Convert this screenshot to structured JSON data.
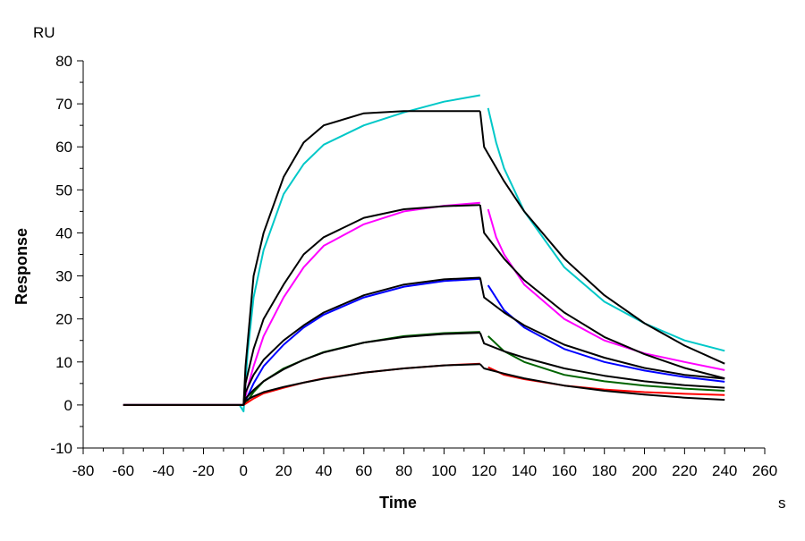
{
  "chart_data": {
    "type": "line",
    "title": "",
    "xlabel": "Time",
    "ylabel": "Response",
    "x_unit": "s",
    "y_unit": "RU",
    "xlim": [
      -80,
      260
    ],
    "ylim": [
      -10,
      80
    ],
    "x_ticks": [
      -80,
      -60,
      -40,
      -20,
      0,
      20,
      40,
      60,
      80,
      100,
      120,
      140,
      160,
      180,
      200,
      220,
      240,
      260
    ],
    "y_ticks": [
      -10,
      0,
      10,
      20,
      30,
      40,
      50,
      60,
      70,
      80
    ],
    "grid": false,
    "legend": "none",
    "series": [
      {
        "color": "#00c8c8",
        "kind": "measured",
        "points": [
          [
            -60,
            0
          ],
          [
            -2,
            0
          ],
          [
            0,
            -1.5
          ],
          [
            2,
            12
          ],
          [
            5,
            25
          ],
          [
            10,
            36
          ],
          [
            20,
            49
          ],
          [
            30,
            56
          ],
          [
            40,
            60.5
          ],
          [
            60,
            65
          ],
          [
            80,
            68
          ],
          [
            100,
            70.5
          ],
          [
            118,
            72
          ]
        ],
        "dissociation": [
          [
            122,
            69
          ],
          [
            126,
            61
          ],
          [
            130,
            55
          ],
          [
            140,
            45
          ],
          [
            160,
            32
          ],
          [
            180,
            24
          ],
          [
            200,
            19
          ],
          [
            220,
            15
          ],
          [
            240,
            12.6
          ]
        ]
      },
      {
        "color": "#000000",
        "kind": "fit",
        "points": [
          [
            0,
            0
          ],
          [
            1,
            9
          ],
          [
            5,
            30
          ],
          [
            10,
            40
          ],
          [
            20,
            53
          ],
          [
            30,
            61
          ],
          [
            40,
            65
          ],
          [
            60,
            67.8
          ],
          [
            80,
            68.3
          ],
          [
            118,
            68.3
          ]
        ],
        "dissociation": [
          [
            118,
            68.3
          ],
          [
            120,
            60
          ],
          [
            130,
            52
          ],
          [
            140,
            45
          ],
          [
            160,
            34
          ],
          [
            180,
            25.5
          ],
          [
            200,
            19
          ],
          [
            220,
            13.8
          ],
          [
            240,
            9.6
          ]
        ]
      },
      {
        "color": "#ff00ff",
        "kind": "measured",
        "points": [
          [
            -60,
            0
          ],
          [
            -2,
            0
          ],
          [
            0,
            0
          ],
          [
            2,
            4
          ],
          [
            5,
            9
          ],
          [
            10,
            16
          ],
          [
            20,
            25
          ],
          [
            30,
            32
          ],
          [
            40,
            37
          ],
          [
            60,
            42
          ],
          [
            80,
            45
          ],
          [
            100,
            46.3
          ],
          [
            118,
            47
          ]
        ],
        "dissociation": [
          [
            122,
            45.5
          ],
          [
            126,
            39
          ],
          [
            130,
            35
          ],
          [
            140,
            28
          ],
          [
            160,
            20
          ],
          [
            180,
            15
          ],
          [
            200,
            12
          ],
          [
            220,
            10
          ],
          [
            240,
            8.1
          ]
        ]
      },
      {
        "color": "#000000",
        "kind": "fit",
        "points": [
          [
            0,
            0
          ],
          [
            1,
            5
          ],
          [
            5,
            13
          ],
          [
            10,
            20
          ],
          [
            20,
            28
          ],
          [
            30,
            35
          ],
          [
            40,
            39
          ],
          [
            60,
            43.5
          ],
          [
            80,
            45.5
          ],
          [
            100,
            46.2
          ],
          [
            118,
            46.5
          ]
        ],
        "dissociation": [
          [
            118,
            46.5
          ],
          [
            120,
            40
          ],
          [
            130,
            34
          ],
          [
            140,
            29
          ],
          [
            160,
            21.5
          ],
          [
            180,
            15.8
          ],
          [
            200,
            11.8
          ],
          [
            220,
            8.6
          ],
          [
            240,
            6.2
          ]
        ]
      },
      {
        "color": "#0000ff",
        "kind": "measured",
        "points": [
          [
            -60,
            0
          ],
          [
            -2,
            0
          ],
          [
            0,
            0
          ],
          [
            2,
            2
          ],
          [
            5,
            5
          ],
          [
            10,
            9
          ],
          [
            20,
            14
          ],
          [
            30,
            18
          ],
          [
            40,
            21
          ],
          [
            60,
            25
          ],
          [
            80,
            27.5
          ],
          [
            100,
            28.8
          ],
          [
            118,
            29.3
          ]
        ],
        "dissociation": [
          [
            122,
            27.8
          ],
          [
            130,
            22
          ],
          [
            140,
            18
          ],
          [
            160,
            13
          ],
          [
            180,
            10
          ],
          [
            200,
            8
          ],
          [
            220,
            6.5
          ],
          [
            240,
            5.4
          ]
        ]
      },
      {
        "color": "#000000",
        "kind": "fit",
        "points": [
          [
            0,
            0
          ],
          [
            1,
            3
          ],
          [
            5,
            7
          ],
          [
            10,
            10.5
          ],
          [
            20,
            15
          ],
          [
            30,
            18.5
          ],
          [
            40,
            21.5
          ],
          [
            60,
            25.5
          ],
          [
            80,
            28
          ],
          [
            100,
            29.2
          ],
          [
            118,
            29.6
          ]
        ],
        "dissociation": [
          [
            118,
            29.6
          ],
          [
            120,
            25
          ],
          [
            130,
            21.5
          ],
          [
            140,
            18.5
          ],
          [
            160,
            14
          ],
          [
            180,
            11
          ],
          [
            200,
            8.6
          ],
          [
            220,
            7
          ],
          [
            240,
            6.1
          ]
        ]
      },
      {
        "color": "#006400",
        "kind": "measured",
        "points": [
          [
            -60,
            0
          ],
          [
            -2,
            0
          ],
          [
            0,
            0
          ],
          [
            2,
            1
          ],
          [
            5,
            3
          ],
          [
            10,
            5.5
          ],
          [
            20,
            8.5
          ],
          [
            30,
            10.5
          ],
          [
            40,
            12.3
          ],
          [
            60,
            14.5
          ],
          [
            80,
            16
          ],
          [
            100,
            16.7
          ],
          [
            118,
            17
          ]
        ],
        "dissociation": [
          [
            122,
            16
          ],
          [
            130,
            12.5
          ],
          [
            140,
            10
          ],
          [
            160,
            7
          ],
          [
            180,
            5.5
          ],
          [
            200,
            4.5
          ],
          [
            220,
            3.8
          ],
          [
            240,
            3.3
          ]
        ]
      },
      {
        "color": "#000000",
        "kind": "fit",
        "points": [
          [
            0,
            0
          ],
          [
            1,
            1.5
          ],
          [
            5,
            3.5
          ],
          [
            10,
            5.5
          ],
          [
            20,
            8.3
          ],
          [
            30,
            10.5
          ],
          [
            40,
            12.2
          ],
          [
            60,
            14.5
          ],
          [
            80,
            15.8
          ],
          [
            100,
            16.5
          ],
          [
            118,
            16.8
          ]
        ],
        "dissociation": [
          [
            118,
            16.8
          ],
          [
            120,
            14.3
          ],
          [
            130,
            12.5
          ],
          [
            140,
            11
          ],
          [
            160,
            8.5
          ],
          [
            180,
            6.8
          ],
          [
            200,
            5.5
          ],
          [
            220,
            4.6
          ],
          [
            240,
            4
          ]
        ]
      },
      {
        "color": "#ff0000",
        "kind": "measured",
        "points": [
          [
            -60,
            0
          ],
          [
            -2,
            0
          ],
          [
            0,
            0
          ],
          [
            2,
            0.6
          ],
          [
            5,
            1.5
          ],
          [
            10,
            2.7
          ],
          [
            20,
            4
          ],
          [
            30,
            5.2
          ],
          [
            40,
            6.2
          ],
          [
            60,
            7.5
          ],
          [
            80,
            8.5
          ],
          [
            100,
            9.2
          ],
          [
            118,
            9.6
          ]
        ],
        "dissociation": [
          [
            122,
            8.8
          ],
          [
            130,
            7
          ],
          [
            140,
            6
          ],
          [
            160,
            4.5
          ],
          [
            180,
            3.6
          ],
          [
            200,
            3
          ],
          [
            220,
            2.6
          ],
          [
            240,
            2.3
          ]
        ]
      },
      {
        "color": "#000000",
        "kind": "fit",
        "points": [
          [
            -60,
            0
          ],
          [
            0,
            0
          ],
          [
            1,
            1
          ],
          [
            5,
            2
          ],
          [
            10,
            3
          ],
          [
            20,
            4.2
          ],
          [
            30,
            5.2
          ],
          [
            40,
            6.1
          ],
          [
            60,
            7.5
          ],
          [
            80,
            8.5
          ],
          [
            100,
            9.2
          ],
          [
            118,
            9.5
          ]
        ],
        "dissociation": [
          [
            118,
            9.5
          ],
          [
            120,
            8.5
          ],
          [
            130,
            7.3
          ],
          [
            140,
            6.2
          ],
          [
            160,
            4.5
          ],
          [
            180,
            3.3
          ],
          [
            200,
            2.4
          ],
          [
            220,
            1.7
          ],
          [
            240,
            1.2
          ]
        ]
      }
    ]
  }
}
